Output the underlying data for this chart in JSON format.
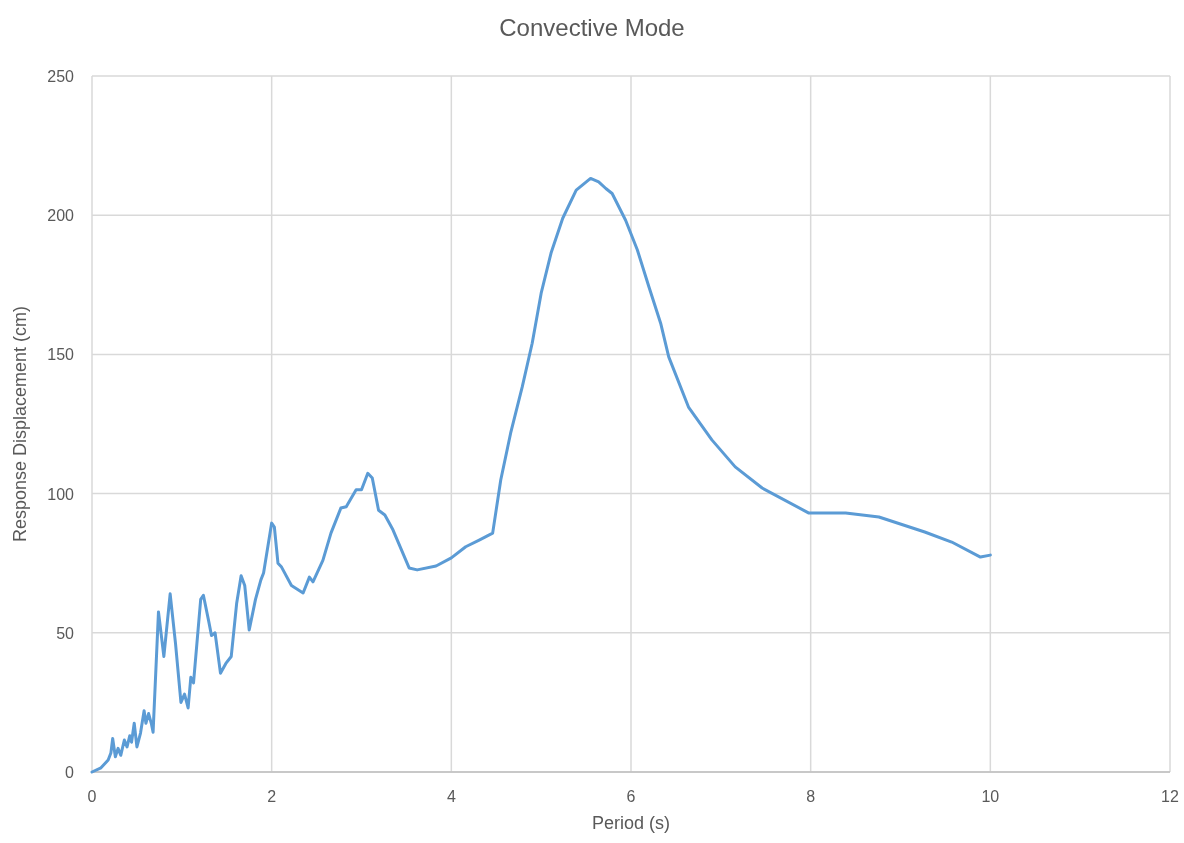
{
  "chart_data": {
    "type": "line",
    "title": "Convective Mode",
    "xlabel": "Period (s)",
    "ylabel": "Response Displacement (cm)",
    "xlim": [
      0,
      12
    ],
    "xticks": [
      0,
      2,
      4,
      6,
      8,
      10,
      12
    ],
    "ylim": [
      0,
      250
    ],
    "yticks": [
      0,
      50,
      100,
      150,
      200,
      250
    ],
    "grid": true,
    "series": [
      {
        "color": "#5b9bd5",
        "x": [
          0,
          0.1,
          0.18,
          0.21,
          0.23,
          0.26,
          0.29,
          0.32,
          0.36,
          0.39,
          0.42,
          0.44,
          0.47,
          0.5,
          0.54,
          0.58,
          0.6,
          0.63,
          0.66,
          0.68,
          0.74,
          0.8,
          0.87,
          0.93,
          0.99,
          1.03,
          1.07,
          1.1,
          1.13,
          1.21,
          1.24,
          1.3,
          1.33,
          1.37,
          1.43,
          1.49,
          1.55,
          1.61,
          1.66,
          1.7,
          1.75,
          1.82,
          1.88,
          1.91,
          2.0,
          2.03,
          2.07,
          2.11,
          2.22,
          2.35,
          2.42,
          2.46,
          2.57,
          2.66,
          2.77,
          2.83,
          2.94,
          3.0,
          3.07,
          3.12,
          3.19,
          3.26,
          3.35,
          3.53,
          3.62,
          3.83,
          4.0,
          4.16,
          4.31,
          4.46,
          4.55,
          4.66,
          4.79,
          4.9,
          5.0,
          5.11,
          5.24,
          5.39,
          5.55,
          5.64,
          5.72,
          5.79,
          5.94,
          6.07,
          6.2,
          6.33,
          6.42,
          6.64,
          6.9,
          7.16,
          7.46,
          7.98,
          8.39,
          8.76,
          9.27,
          9.57,
          9.89,
          10.0
        ],
        "values": [
          0,
          1.5,
          4.3,
          6.8,
          12,
          5.5,
          8.5,
          6,
          11.5,
          9,
          13,
          10.7,
          17.5,
          9,
          14,
          22,
          17.5,
          21,
          17.5,
          14.3,
          57.5,
          41.5,
          64,
          46,
          25,
          28,
          23,
          34,
          32,
          62,
          63.5,
          54,
          49,
          50,
          35.5,
          39,
          41.5,
          60.5,
          70.5,
          67,
          51,
          62,
          69,
          71.5,
          89.4,
          88,
          75,
          73.6,
          67,
          64.3,
          70,
          68.3,
          76,
          85.8,
          94.8,
          95.3,
          101.4,
          101.4,
          107.3,
          105.6,
          94,
          92.3,
          87,
          73.3,
          72.6,
          74,
          76.9,
          80.9,
          83.3,
          85.8,
          104.9,
          121.7,
          138.4,
          154,
          172,
          186.4,
          198.9,
          209,
          213.2,
          212,
          209.6,
          207.8,
          198.2,
          187.6,
          174.2,
          161.2,
          149.1,
          131.1,
          119.3,
          109.6,
          102,
          93,
          93,
          91.6,
          86.2,
          82.6,
          77.2,
          77.9
        ]
      }
    ]
  }
}
